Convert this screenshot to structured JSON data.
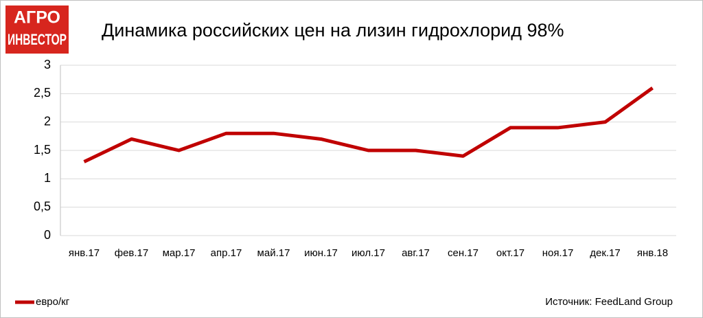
{
  "chart_data": {
    "type": "line",
    "logo": [
      "АГРО",
      "ИНВЕСТОР"
    ],
    "title": "Динамика российских цен на лизин гидрохлорид 98%",
    "categories": [
      "янв.17",
      "фев.17",
      "мар.17",
      "апр.17",
      "май.17",
      "июн.17",
      "июл.17",
      "авг.17",
      "сен.17",
      "окт.17",
      "ноя.17",
      "дек.17",
      "янв.18"
    ],
    "series": [
      {
        "name": "евро/кг",
        "color": "#c00000",
        "values": [
          1.3,
          1.7,
          1.5,
          1.8,
          1.8,
          1.7,
          1.5,
          1.5,
          1.4,
          1.9,
          1.9,
          2.0,
          2.6
        ]
      }
    ],
    "ylim": [
      0,
      3
    ],
    "yticks": [
      0,
      {
        "value": 0.5,
        "label": "0,5"
      },
      1,
      {
        "value": 1.5,
        "label": "1,5"
      },
      2,
      {
        "value": 2.5,
        "label": "2,5"
      },
      3
    ],
    "grid": true,
    "legend": "bottom-left",
    "source": "Источник: FeedLand Group"
  }
}
